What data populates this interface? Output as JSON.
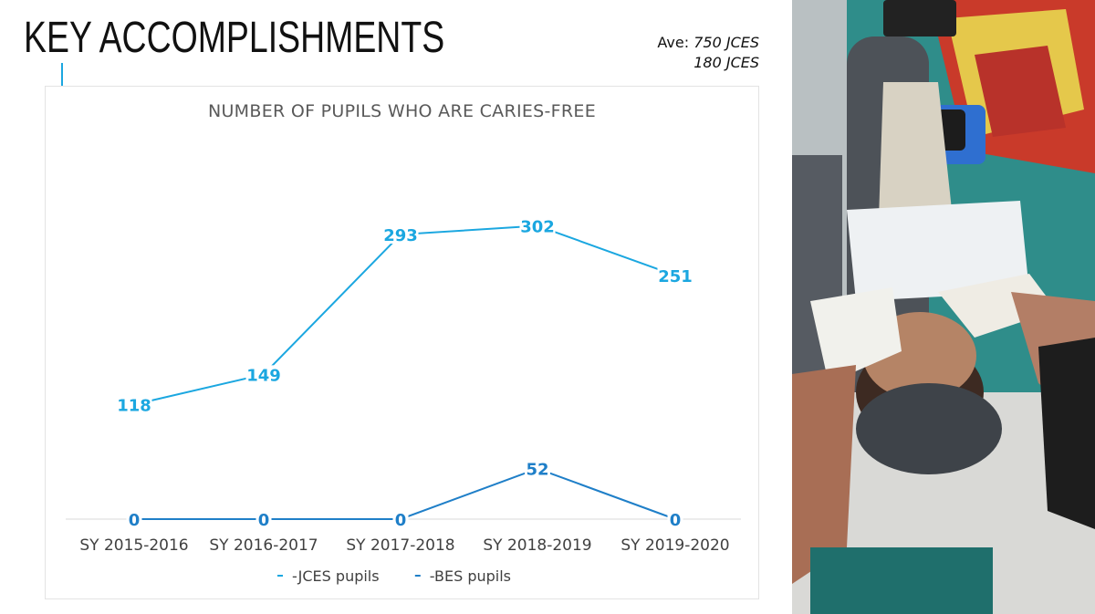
{
  "slide": {
    "title": "KEY ACCOMPLISHMENTS",
    "note_line1_prefix": "Ave: ",
    "note_line1_value": "750 JCES",
    "note_line2": "180 JCES",
    "accent_color": "#1ba7e0"
  },
  "chart_data": {
    "type": "line",
    "title": "NUMBER OF PUPILS WHO ARE CARIES-FREE",
    "categories": [
      "SY 2015-2016",
      "SY 2016-2017",
      "SY 2017-2018",
      "SY 2018-2019",
      "SY 2019-2020"
    ],
    "series": [
      {
        "name": "JCES pupils",
        "legend_label": "-JCES pupils",
        "color": "#1ba7e0",
        "values": [
          118,
          149,
          293,
          302,
          251
        ]
      },
      {
        "name": "BES pupils",
        "legend_label": "-BES pupils",
        "color": "#1f7fc8",
        "values": [
          0,
          0,
          0,
          52,
          0
        ]
      }
    ],
    "xlabel": "",
    "ylabel": "",
    "ylim": [
      0,
      340
    ],
    "grid": false,
    "legend_position": "bottom",
    "data_labels": true
  },
  "photo": {
    "description": "dental procedure on child photo",
    "alt": "Dentist treating a child in a dental chair"
  }
}
